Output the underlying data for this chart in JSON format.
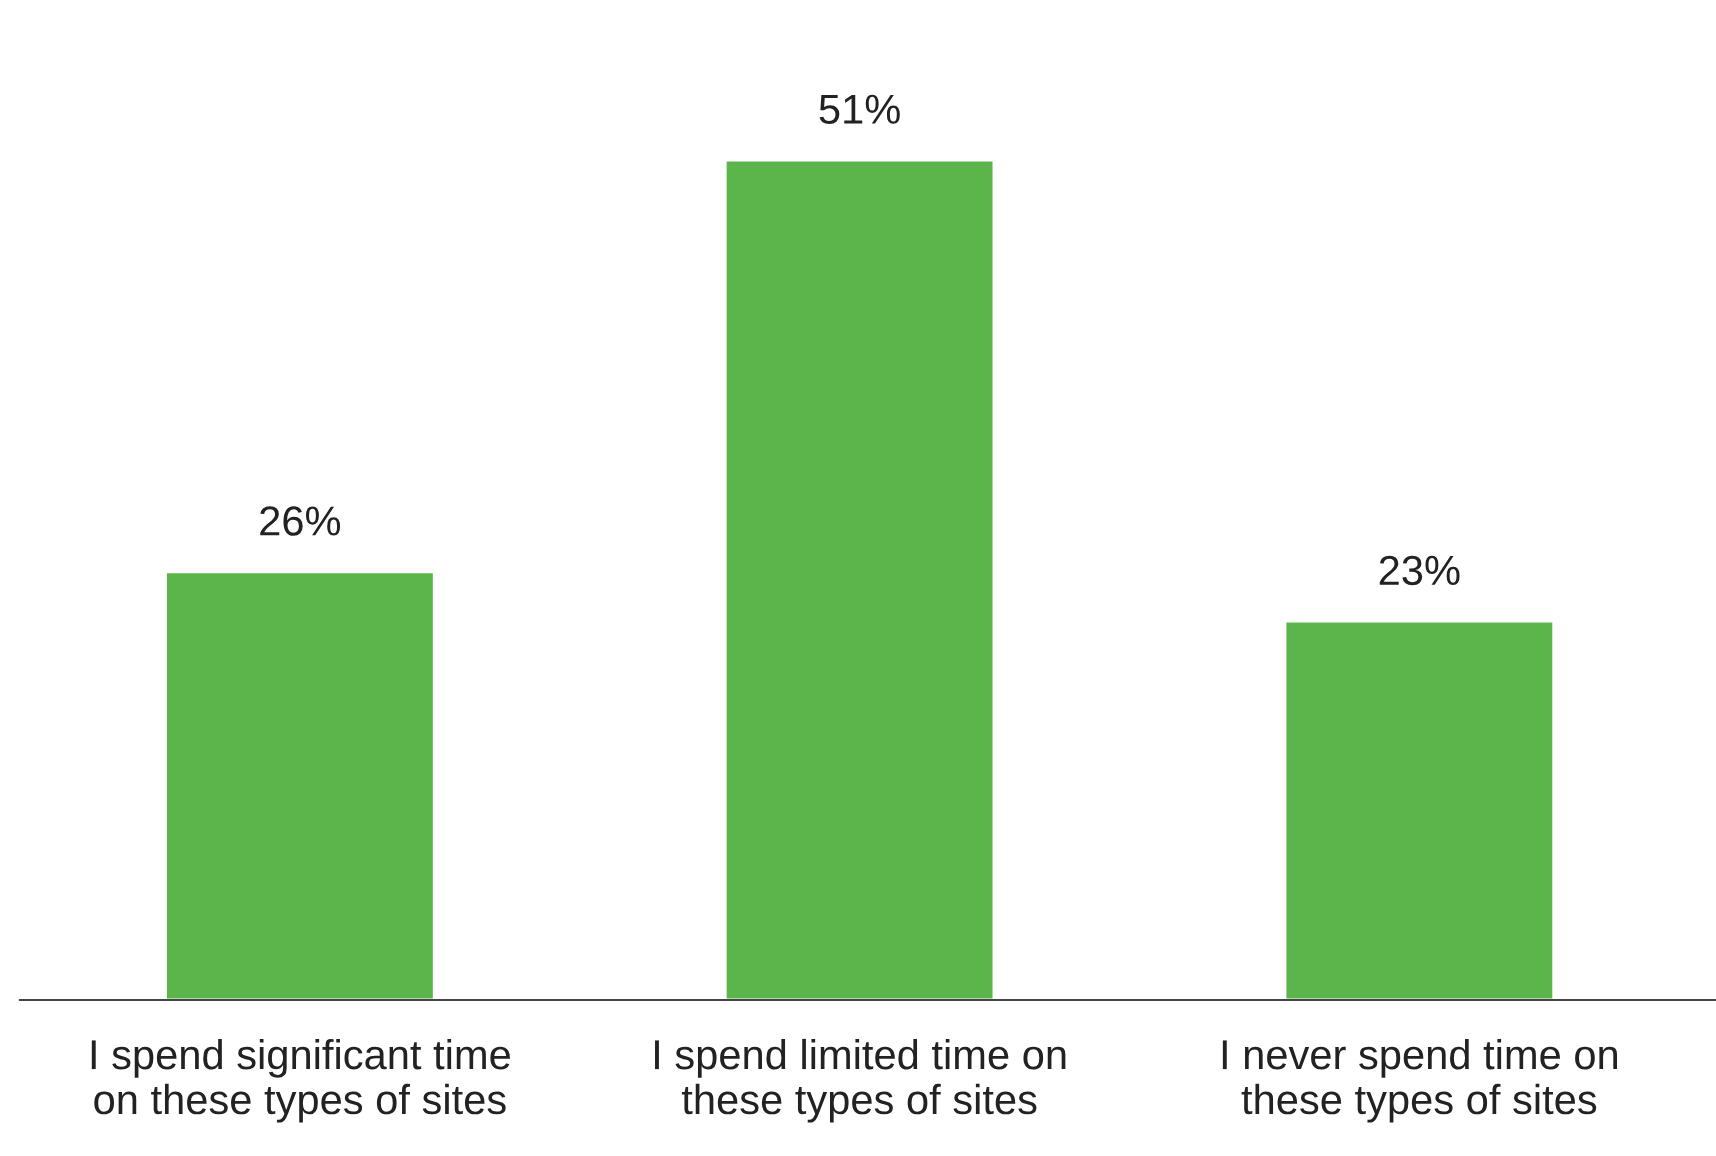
{
  "chart_data": {
    "type": "bar",
    "categories": [
      "I spend significant time\non these types of sites",
      "I spend limited time on\nthese types of sites",
      "I never spend time on\nthese types of sites"
    ],
    "values": [
      26,
      51,
      23
    ],
    "value_labels": [
      "26%",
      "51%",
      "23%"
    ],
    "color": "#5cb54b",
    "grid": false,
    "legend": false
  }
}
